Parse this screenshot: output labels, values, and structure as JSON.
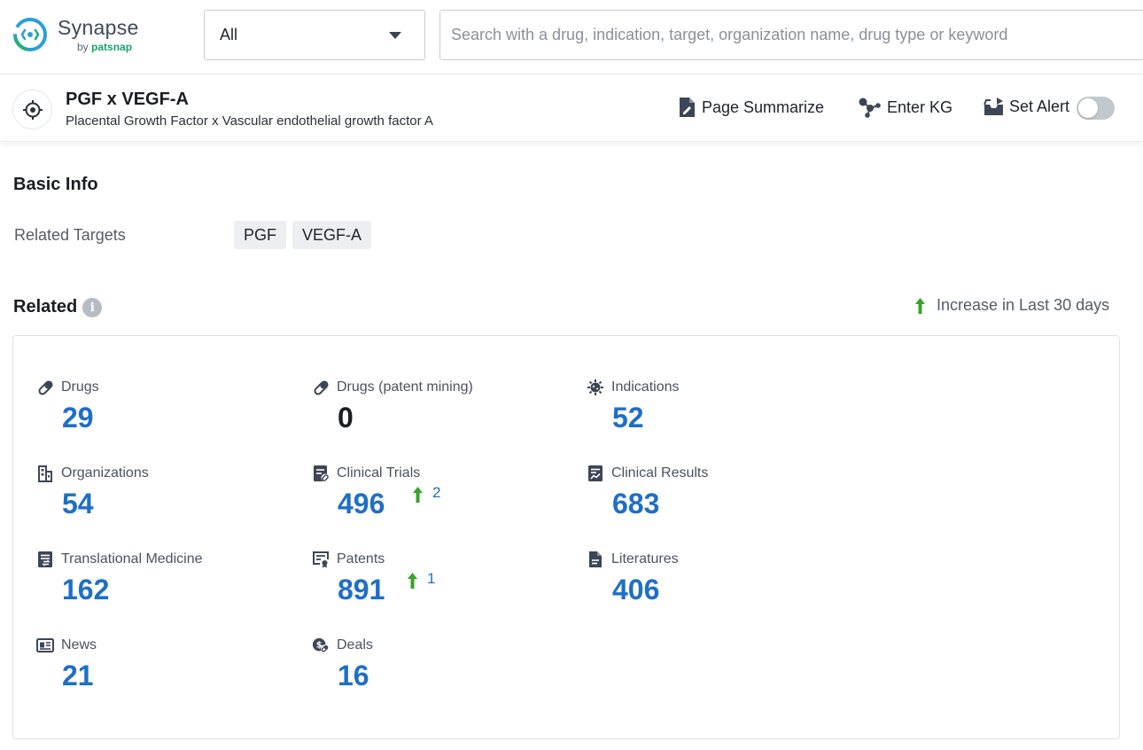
{
  "brand": {
    "name": "Synapse",
    "by": "by",
    "by_brand": "patsnap"
  },
  "search": {
    "scope_selected": "All",
    "placeholder": "Search with a drug, indication, target, organization name, drug type or keyword",
    "value": ""
  },
  "entity": {
    "title": "PGF x VEGF-A",
    "subtitle": "Placental Growth Factor x Vascular endothelial growth factor A"
  },
  "actions": {
    "summarize": "Page Summarize",
    "kg": "Enter KG",
    "alert": "Set Alert",
    "alert_enabled": false
  },
  "basic_info": {
    "title": "Basic Info",
    "related_targets_label": "Related Targets",
    "targets": [
      "PGF",
      "VEGF-A"
    ]
  },
  "related": {
    "title": "Related",
    "info_icon": "i",
    "increase_legend": "Increase in Last 30 days",
    "stats": [
      {
        "label": "Drugs",
        "value": "29",
        "icon": "pill-icon"
      },
      {
        "label": "Drugs (patent mining)",
        "value": "0",
        "icon": "pill-icon"
      },
      {
        "label": "Indications",
        "value": "52",
        "icon": "virus-icon"
      },
      {
        "label": "Organizations",
        "value": "54",
        "icon": "building-icon"
      },
      {
        "label": "Clinical Trials",
        "value": "496",
        "increase": "2",
        "icon": "clinical-trials-icon"
      },
      {
        "label": "Clinical Results",
        "value": "683",
        "icon": "clinical-results-icon"
      },
      {
        "label": "Translational Medicine",
        "value": "162",
        "icon": "translational-icon"
      },
      {
        "label": "Patents",
        "value": "891",
        "increase": "1",
        "icon": "patent-icon"
      },
      {
        "label": "Literatures",
        "value": "406",
        "icon": "document-icon"
      },
      {
        "label": "News",
        "value": "21",
        "icon": "news-icon"
      },
      {
        "label": "Deals",
        "value": "16",
        "icon": "deals-icon"
      }
    ]
  },
  "colors": {
    "accent_blue": "#1e6fc6",
    "increase_green": "#38a32a",
    "brand_green": "#1aa36d",
    "icon_gray": "#4a5260"
  }
}
